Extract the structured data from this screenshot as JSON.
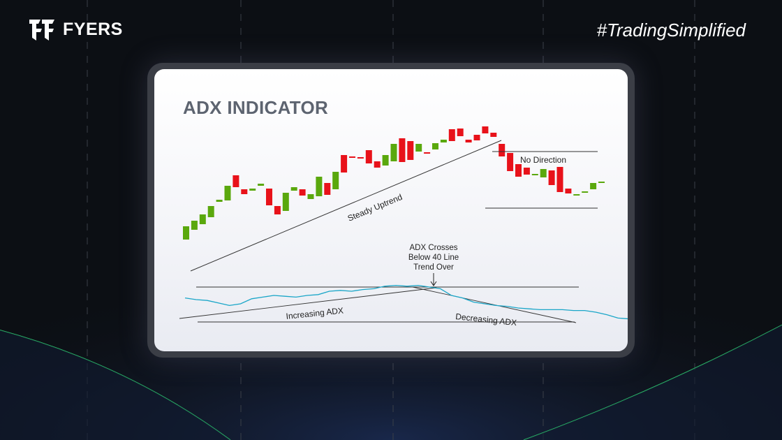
{
  "brand": {
    "name": "FYERS",
    "hashtag": "#TradingSimplified"
  },
  "card": {
    "title": "ADX INDICATOR"
  },
  "colors": {
    "up": "#5aa80d",
    "down": "#e8121a",
    "adx": "#1aa6c8",
    "line": "#333333",
    "accent_curve": "#2ecc71"
  },
  "chart_data": {
    "type": "candlestick",
    "candles": [
      {
        "o": 56,
        "c": 75
      },
      {
        "o": 70,
        "c": 83
      },
      {
        "o": 78,
        "c": 92
      },
      {
        "o": 88,
        "c": 104
      },
      {
        "o": 110,
        "c": 113
      },
      {
        "o": 112,
        "c": 133
      },
      {
        "o": 148,
        "c": 131
      },
      {
        "o": 128,
        "c": 121
      },
      {
        "o": 126,
        "c": 129
      },
      {
        "o": 133,
        "c": 136
      },
      {
        "o": 129,
        "c": 105
      },
      {
        "o": 104,
        "c": 92
      },
      {
        "o": 97,
        "c": 123
      },
      {
        "o": 126,
        "c": 131
      },
      {
        "o": 128,
        "c": 119
      },
      {
        "o": 114,
        "c": 121
      },
      {
        "o": 118,
        "c": 146
      },
      {
        "o": 137,
        "c": 120
      },
      {
        "o": 128,
        "c": 153
      },
      {
        "o": 177,
        "c": 152
      },
      {
        "o": 175,
        "c": 174
      },
      {
        "o": 174,
        "c": 172
      },
      {
        "o": 184,
        "c": 165
      },
      {
        "o": 168,
        "c": 159
      },
      {
        "o": 162,
        "c": 177
      },
      {
        "o": 168,
        "c": 193
      },
      {
        "o": 201,
        "c": 167
      },
      {
        "o": 197,
        "c": 170
      },
      {
        "o": 182,
        "c": 193
      },
      {
        "o": 181,
        "c": 179
      },
      {
        "o": 185,
        "c": 194
      },
      {
        "o": 195,
        "c": 199
      },
      {
        "o": 214,
        "c": 197
      },
      {
        "o": 215,
        "c": 204
      },
      {
        "o": 199,
        "c": 195
      },
      {
        "o": 206,
        "c": 198
      },
      {
        "o": 218,
        "c": 208
      },
      {
        "o": 209,
        "c": 203
      },
      {
        "o": 193,
        "c": 175
      },
      {
        "o": 180,
        "c": 154
      },
      {
        "o": 164,
        "c": 146
      },
      {
        "o": 159,
        "c": 149
      },
      {
        "o": 150,
        "c": 150
      },
      {
        "o": 145,
        "c": 157
      },
      {
        "o": 155,
        "c": 134
      },
      {
        "o": 160,
        "c": 124
      },
      {
        "o": 129,
        "c": 122
      },
      {
        "o": 121,
        "c": 121
      },
      {
        "o": 125,
        "c": 125
      },
      {
        "o": 128,
        "c": 137
      },
      {
        "o": 137,
        "c": 139
      }
    ],
    "adx": [
      27,
      25,
      24,
      21,
      18,
      20,
      26,
      28,
      30,
      29,
      28,
      30,
      31,
      35,
      36,
      35,
      37,
      38,
      41,
      42,
      41,
      42,
      40,
      38,
      30,
      27,
      22,
      20,
      18,
      17,
      15,
      14,
      13,
      13,
      13,
      12,
      12,
      10,
      7,
      3,
      2,
      2
    ],
    "adx_threshold_line": 40,
    "annotations": {
      "uptrend": "Steady Uptrend",
      "no_direction": "No Direction",
      "cross_line1": "ADX Crosses",
      "cross_line2": "Below 40 Line",
      "cross_line3": "Trend Over",
      "increasing": "Increasing ADX",
      "decreasing": "Decreasing ADX"
    }
  }
}
